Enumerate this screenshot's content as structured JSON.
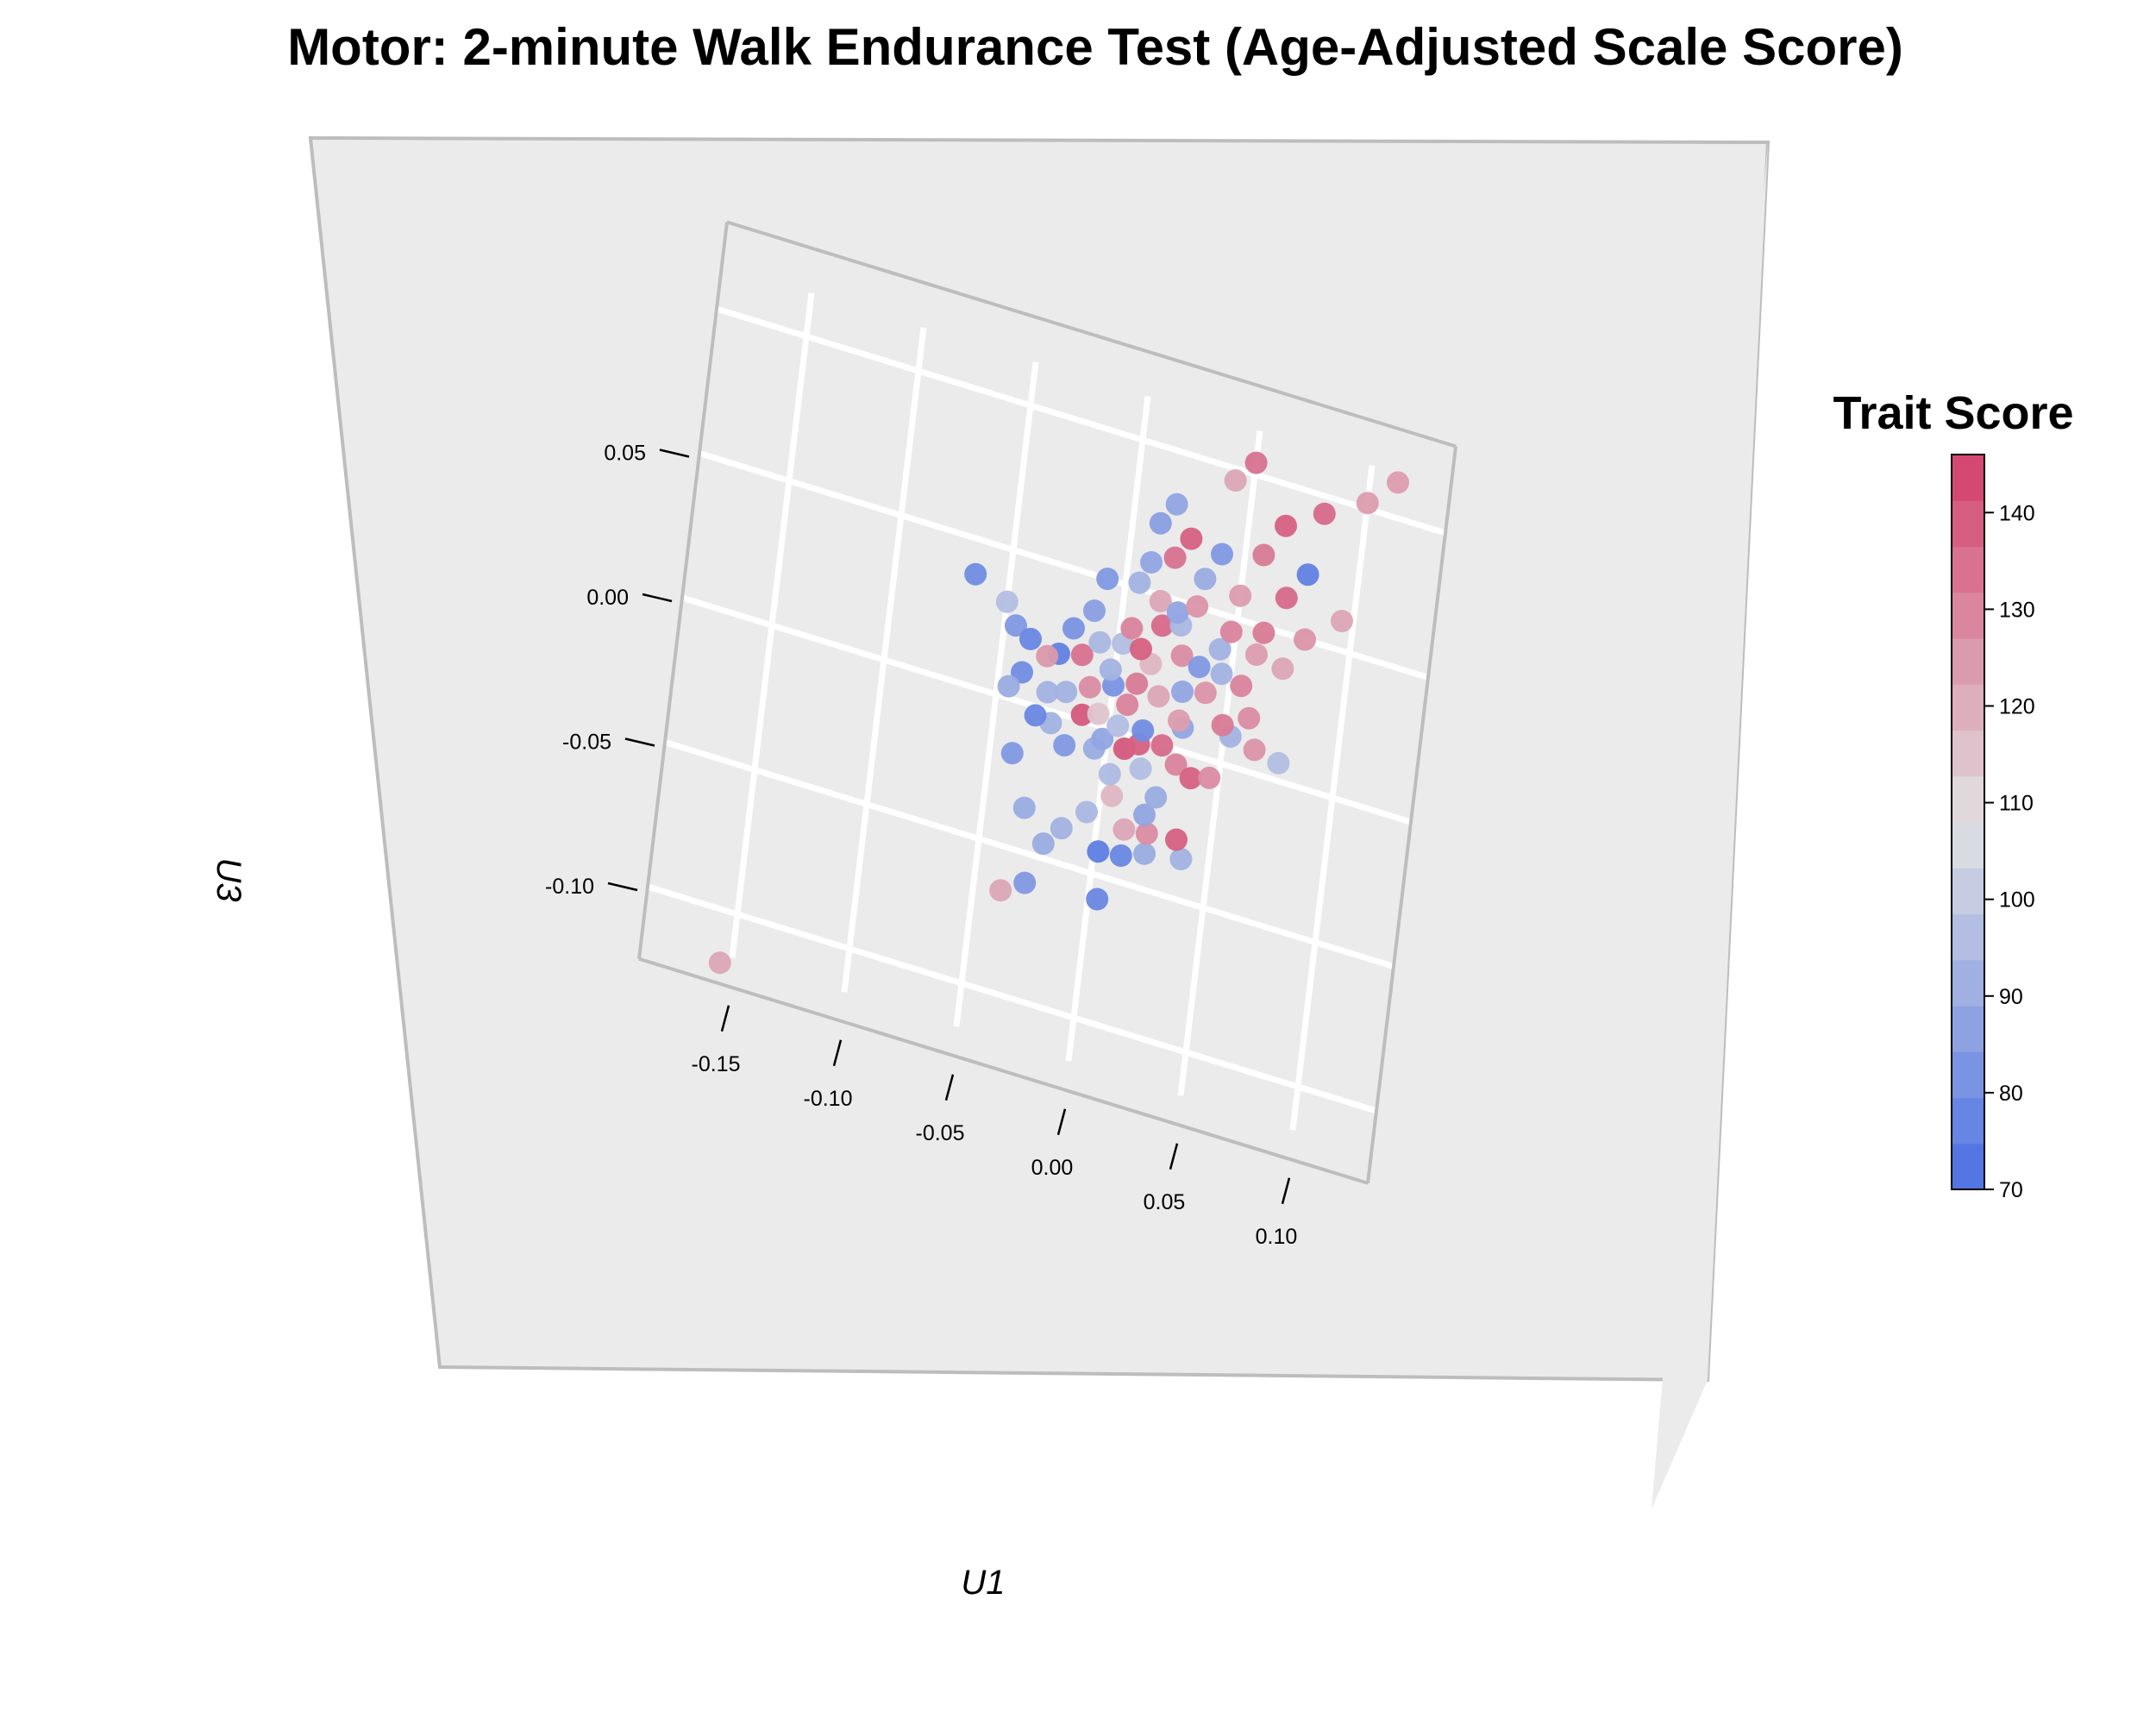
{
  "chart_data": {
    "type": "scatter",
    "title": "Motor: 2-minute Walk Endurance Test (Age-Adjusted Scale Score)",
    "x_axis": {
      "label": "U1",
      "ticks": [
        -0.15,
        -0.1,
        -0.05,
        0.0,
        0.05,
        0.1
      ],
      "tick_labels": [
        "-0.15",
        "-0.10",
        "-0.05",
        "0.00",
        "0.05",
        "0.10"
      ]
    },
    "z_axis": {
      "label": "U3",
      "ticks": [
        0.05,
        0.0,
        -0.05,
        -0.1
      ],
      "tick_labels": [
        "0.05",
        "0.00",
        "-0.05",
        "-0.10"
      ]
    },
    "colorbar": {
      "title": "Trait Score",
      "range": [
        70,
        146
      ],
      "ticks": [
        70,
        80,
        90,
        100,
        110,
        120,
        130,
        140
      ],
      "tick_labels": [
        "70",
        "80",
        "90",
        "100",
        "110",
        "120",
        "130",
        "140"
      ],
      "low_color": "#4a6fe3",
      "mid_color": "#e2e2e2",
      "high_color": "#d33f6a"
    },
    "grid": true,
    "legend_placement": "right",
    "points": [
      {
        "u1": -0.155,
        "u3": -0.118,
        "score": 122
      },
      {
        "u1": -0.038,
        "u3": -0.065,
        "score": 122
      },
      {
        "u1": -0.028,
        "u3": -0.06,
        "score": 84
      },
      {
        "u1": 0.004,
        "u3": -0.058,
        "score": 78
      },
      {
        "u1": -0.032,
        "u3": -0.035,
        "score": 90
      },
      {
        "u1": -0.015,
        "u3": -0.038,
        "score": 92
      },
      {
        "u1": 0.002,
        "u3": -0.042,
        "score": 75
      },
      {
        "u1": 0.012,
        "u3": -0.041,
        "score": 78
      },
      {
        "u1": 0.022,
        "u3": -0.038,
        "score": 90
      },
      {
        "u1": 0.038,
        "u3": -0.036,
        "score": 92
      },
      {
        "u1": 0.035,
        "u3": -0.03,
        "score": 138
      },
      {
        "u1": 0.022,
        "u3": -0.031,
        "score": 128
      },
      {
        "u1": 0.012,
        "u3": -0.032,
        "score": 122
      },
      {
        "u1": -0.005,
        "u3": -0.03,
        "score": 94
      },
      {
        "u1": 0.005,
        "u3": -0.022,
        "score": 118
      },
      {
        "u1": 0.02,
        "u3": -0.025,
        "score": 88
      },
      {
        "u1": 0.024,
        "u3": -0.018,
        "score": 90
      },
      {
        "u1": 0.003,
        "u3": -0.015,
        "score": 95
      },
      {
        "u1": -0.005,
        "u3": -0.008,
        "score": 90
      },
      {
        "u1": -0.018,
        "u3": -0.01,
        "score": 84
      },
      {
        "u1": -0.025,
        "u3": -0.004,
        "score": 92
      },
      {
        "u1": -0.032,
        "u3": -0.003,
        "score": 78
      },
      {
        "u1": -0.002,
        "u3": -0.004,
        "score": 88
      },
      {
        "u1": 0.008,
        "u3": -0.005,
        "score": 140
      },
      {
        "u1": 0.014,
        "u3": -0.002,
        "score": 138
      },
      {
        "u1": 0.024,
        "u3": 0.0,
        "score": 136
      },
      {
        "u1": 0.031,
        "u3": -0.005,
        "score": 130
      },
      {
        "u1": 0.038,
        "u3": -0.008,
        "score": 138
      },
      {
        "u1": 0.046,
        "u3": -0.006,
        "score": 128
      },
      {
        "u1": -0.012,
        "u3": 0.002,
        "score": 140
      },
      {
        "u1": -0.005,
        "u3": 0.004,
        "score": 115
      },
      {
        "u1": 0.004,
        "u3": 0.002,
        "score": 96
      },
      {
        "u1": 0.015,
        "u3": 0.003,
        "score": 80
      },
      {
        "u1": -0.028,
        "u3": 0.006,
        "score": 92
      },
      {
        "u1": -0.04,
        "u3": 0.01,
        "score": 80
      },
      {
        "u1": -0.045,
        "u3": 0.004,
        "score": 90
      },
      {
        "u1": -0.02,
        "u3": 0.008,
        "score": 92
      },
      {
        "u1": 0.007,
        "u3": 0.01,
        "score": 130
      },
      {
        "u1": 0.032,
        "u3": 0.008,
        "score": 88
      },
      {
        "u1": 0.053,
        "u3": 0.01,
        "score": 92
      },
      {
        "u1": 0.064,
        "u3": 0.008,
        "score": 126
      },
      {
        "u1": 0.075,
        "u3": 0.006,
        "score": 96
      },
      {
        "u1": 0.049,
        "u3": 0.013,
        "score": 132
      },
      {
        "u1": -0.01,
        "u3": 0.012,
        "score": 128
      },
      {
        "u1": 0.0,
        "u3": 0.015,
        "score": 82
      },
      {
        "u1": -0.025,
        "u3": 0.02,
        "score": 76
      },
      {
        "u1": -0.03,
        "u3": 0.018,
        "score": 125
      },
      {
        "u1": -0.015,
        "u3": 0.022,
        "score": 134
      },
      {
        "u1": 0.01,
        "u3": 0.018,
        "score": 132
      },
      {
        "u1": 0.02,
        "u3": 0.016,
        "score": 122
      },
      {
        "u1": 0.03,
        "u3": 0.02,
        "score": 88
      },
      {
        "u1": 0.04,
        "u3": 0.022,
        "score": 126
      },
      {
        "u1": 0.06,
        "u3": 0.018,
        "score": 128
      },
      {
        "u1": -0.045,
        "u3": 0.025,
        "score": 84
      },
      {
        "u1": -0.038,
        "u3": 0.022,
        "score": 78
      },
      {
        "u1": -0.02,
        "u3": 0.03,
        "score": 82
      },
      {
        "u1": -0.008,
        "u3": 0.028,
        "score": 94
      },
      {
        "u1": 0.002,
        "u3": 0.03,
        "score": 96
      },
      {
        "u1": 0.015,
        "u3": 0.026,
        "score": 118
      },
      {
        "u1": 0.028,
        "u3": 0.032,
        "score": 128
      },
      {
        "u1": 0.036,
        "u3": 0.03,
        "score": 84
      },
      {
        "u1": 0.055,
        "u3": 0.028,
        "score": 130
      },
      {
        "u1": -0.065,
        "u3": 0.038,
        "score": 80
      },
      {
        "u1": -0.05,
        "u3": 0.032,
        "score": 96
      },
      {
        "u1": -0.012,
        "u3": 0.038,
        "score": 86
      },
      {
        "u1": 0.005,
        "u3": 0.036,
        "score": 130
      },
      {
        "u1": 0.018,
        "u3": 0.04,
        "score": 136
      },
      {
        "u1": 0.026,
        "u3": 0.042,
        "score": 94
      },
      {
        "u1": 0.044,
        "u3": 0.038,
        "score": 92
      },
      {
        "u1": 0.06,
        "u3": 0.04,
        "score": 124
      },
      {
        "u1": 0.072,
        "u3": 0.038,
        "score": 122
      },
      {
        "u1": -0.008,
        "u3": 0.05,
        "score": 84
      },
      {
        "u1": 0.006,
        "u3": 0.052,
        "score": 92
      },
      {
        "u1": 0.016,
        "u3": 0.048,
        "score": 122
      },
      {
        "u1": 0.024,
        "u3": 0.046,
        "score": 88
      },
      {
        "u1": 0.032,
        "u3": 0.05,
        "score": 126
      },
      {
        "u1": 0.048,
        "u3": 0.045,
        "score": 130
      },
      {
        "u1": 0.062,
        "u3": 0.048,
        "score": 132
      },
      {
        "u1": 0.08,
        "u3": 0.05,
        "score": 126
      },
      {
        "u1": 0.01,
        "u3": 0.06,
        "score": 88
      },
      {
        "u1": 0.02,
        "u3": 0.064,
        "score": 134
      },
      {
        "u1": 0.034,
        "u3": 0.06,
        "score": 90
      },
      {
        "u1": 0.05,
        "u3": 0.058,
        "score": 124
      },
      {
        "u1": 0.07,
        "u3": 0.062,
        "score": 136
      },
      {
        "u1": 0.095,
        "u3": 0.06,
        "score": 122
      },
      {
        "u1": 0.012,
        "u3": 0.074,
        "score": 86
      },
      {
        "u1": 0.026,
        "u3": 0.072,
        "score": 138
      },
      {
        "u1": 0.04,
        "u3": 0.07,
        "score": 84
      },
      {
        "u1": 0.058,
        "u3": 0.074,
        "score": 132
      },
      {
        "u1": 0.078,
        "u3": 0.072,
        "score": 76
      },
      {
        "u1": 0.018,
        "u3": 0.082,
        "score": 88
      },
      {
        "u1": 0.066,
        "u3": 0.086,
        "score": 138
      },
      {
        "u1": 0.042,
        "u3": 0.096,
        "score": 122
      },
      {
        "u1": 0.082,
        "u3": 0.094,
        "score": 136
      },
      {
        "u1": 0.05,
        "u3": 0.104,
        "score": 134
      },
      {
        "u1": 0.1,
        "u3": 0.102,
        "score": 124
      },
      {
        "u1": 0.112,
        "u3": 0.112,
        "score": 124
      },
      {
        "u1": -0.04,
        "u3": -0.018,
        "score": 84
      },
      {
        "u1": -0.022,
        "u3": -0.045,
        "score": 90
      },
      {
        "u1": 0.016,
        "u3": -0.01,
        "score": 96
      },
      {
        "u1": 0.03,
        "u3": 0.01,
        "score": 124
      },
      {
        "u1": -0.002,
        "u3": 0.02,
        "score": 92
      },
      {
        "u1": 0.01,
        "u3": 0.03,
        "score": 138
      },
      {
        "u1": 0.046,
        "u3": 0.03,
        "score": 92
      }
    ]
  }
}
